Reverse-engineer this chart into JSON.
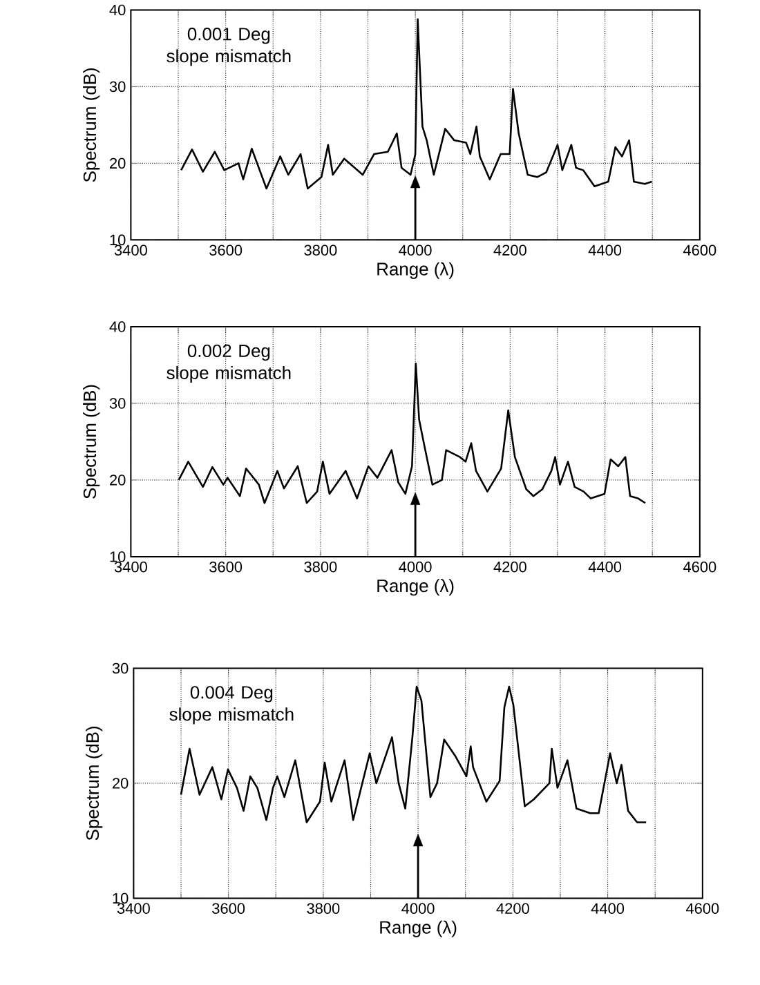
{
  "chart_data": [
    {
      "type": "line",
      "xlabel": "Range (λ)",
      "ylabel": "Spectrum (dB)",
      "annotations": [
        "0.001 Deg slope mismatch"
      ],
      "color": "#000000",
      "grid": true,
      "xlim": [
        3400,
        4600
      ],
      "ylim": [
        10,
        40
      ],
      "xticks": [
        3400,
        {
          "value": 3500,
          "label": null
        },
        3600,
        {
          "value": 3700,
          "label": null
        },
        3800,
        {
          "value": 3900,
          "label": null
        },
        4000,
        {
          "value": 4100,
          "label": null
        },
        4200,
        {
          "value": 4300,
          "label": null
        },
        4400,
        {
          "value": 4500,
          "label": null
        },
        4600
      ],
      "yticks": [
        10,
        20,
        30,
        40
      ],
      "ref_lines": [
        {
          "axis": "x",
          "value": 4000
        }
      ],
      "x": [
        3506,
        3529,
        3552,
        3577,
        3597,
        3627,
        3637,
        3655,
        3686,
        3715,
        3732,
        3758,
        3773,
        3802,
        3816,
        3826,
        3850,
        3889,
        3913,
        3942,
        3961,
        3971,
        3990,
        4000,
        4005,
        4015,
        4024,
        4039,
        4063,
        4082,
        4107,
        4116,
        4129,
        4136,
        4157,
        4180,
        4199,
        4206,
        4218,
        4237,
        4257,
        4276,
        4300,
        4310,
        4329,
        4339,
        4354,
        4378,
        4407,
        4422,
        4436,
        4451,
        4461,
        4484,
        4499
      ],
      "values": [
        19.1,
        21.8,
        18.9,
        21.5,
        19.1,
        20.0,
        17.9,
        21.9,
        16.7,
        20.9,
        18.5,
        21.2,
        16.7,
        18.2,
        22.4,
        18.5,
        20.6,
        18.5,
        21.2,
        21.5,
        23.9,
        19.4,
        18.5,
        21.2,
        38.8,
        24.8,
        23.0,
        18.5,
        24.5,
        23.0,
        22.7,
        21.2,
        24.8,
        20.9,
        17.9,
        21.2,
        21.2,
        29.7,
        23.9,
        18.5,
        18.2,
        18.8,
        22.4,
        19.1,
        22.4,
        19.4,
        19.1,
        17.0,
        17.6,
        22.1,
        20.9,
        23.0,
        17.6,
        17.3,
        17.6
      ]
    },
    {
      "type": "line",
      "xlabel": "Range (λ)",
      "ylabel": "Spectrum (dB)",
      "annotations": [
        "0.002 Deg slope mismatch"
      ],
      "color": "#000000",
      "grid": true,
      "xlim": [
        3400,
        4600
      ],
      "ylim": [
        10,
        40
      ],
      "xticks": [
        3400,
        {
          "value": 3500,
          "label": null
        },
        3600,
        {
          "value": 3700,
          "label": null
        },
        3800,
        {
          "value": 3900,
          "label": null
        },
        4000,
        {
          "value": 4100,
          "label": null
        },
        4200,
        {
          "value": 4300,
          "label": null
        },
        4400,
        {
          "value": 4500,
          "label": null
        },
        4600
      ],
      "yticks": [
        10,
        20,
        30,
        40
      ],
      "ref_lines": [
        {
          "axis": "x",
          "value": 4000
        }
      ],
      "x": [
        3501,
        3521,
        3552,
        3572,
        3595,
        3604,
        3630,
        3643,
        3670,
        3682,
        3709,
        3723,
        3752,
        3771,
        3793,
        3805,
        3819,
        3853,
        3877,
        3901,
        3920,
        3950,
        3964,
        3979,
        3993,
        4001,
        4008,
        4019,
        4036,
        4056,
        4065,
        4094,
        4106,
        4118,
        4128,
        4152,
        4181,
        4196,
        4210,
        4234,
        4249,
        4268,
        4287,
        4295,
        4305,
        4322,
        4336,
        4355,
        4370,
        4399,
        4412,
        4428,
        4443,
        4453,
        4470,
        4485
      ],
      "values": [
        20.0,
        22.4,
        19.1,
        21.7,
        19.4,
        20.3,
        17.9,
        21.5,
        19.4,
        17.0,
        21.2,
        18.9,
        21.8,
        17.0,
        18.5,
        22.4,
        18.2,
        21.2,
        17.6,
        21.8,
        20.3,
        23.9,
        19.7,
        18.2,
        21.8,
        35.2,
        27.9,
        24.5,
        19.4,
        20.0,
        23.9,
        23.0,
        22.4,
        24.8,
        21.2,
        18.5,
        21.5,
        29.1,
        23.0,
        18.8,
        17.9,
        18.8,
        21.2,
        23.0,
        19.4,
        22.4,
        19.1,
        18.5,
        17.6,
        18.2,
        22.7,
        21.8,
        23.0,
        17.9,
        17.6,
        17.0
      ]
    },
    {
      "type": "line",
      "xlabel": "Range (λ)",
      "ylabel": "Spectrum (dB)",
      "annotations": [
        "0.004 Deg slope mismatch"
      ],
      "color": "#000000",
      "grid": true,
      "xlim": [
        3400,
        4600
      ],
      "ylim": [
        10,
        30
      ],
      "xticks": [
        3400,
        {
          "value": 3500,
          "label": null
        },
        3600,
        {
          "value": 3700,
          "label": null
        },
        3800,
        {
          "value": 3900,
          "label": null
        },
        4000,
        {
          "value": 4100,
          "label": null
        },
        4200,
        {
          "value": 4300,
          "label": null
        },
        4400,
        {
          "value": 4500,
          "label": null
        },
        4600
      ],
      "yticks": [
        10,
        20,
        30
      ],
      "ref_lines": [
        {
          "axis": "x",
          "value": 4000
        }
      ],
      "x": [
        3500,
        3518,
        3539,
        3566,
        3585,
        3599,
        3618,
        3632,
        3646,
        3661,
        3680,
        3694,
        3703,
        3718,
        3741,
        3765,
        3793,
        3803,
        3817,
        3845,
        3863,
        3898,
        3912,
        3945,
        3959,
        3973,
        3988,
        3997,
        4007,
        4026,
        4040,
        4055,
        4078,
        4102,
        4111,
        4116,
        4144,
        4172,
        4182,
        4192,
        4201,
        4225,
        4244,
        4277,
        4282,
        4294,
        4315,
        4334,
        4363,
        4381,
        4405,
        4419,
        4429,
        4443,
        4462,
        4481
      ],
      "values": [
        19.0,
        23.0,
        19.0,
        21.4,
        18.6,
        21.2,
        19.6,
        17.6,
        20.6,
        19.6,
        16.8,
        19.6,
        20.6,
        18.8,
        22.0,
        16.6,
        18.4,
        21.8,
        18.4,
        22.0,
        16.8,
        22.6,
        20.0,
        24.0,
        20.0,
        17.8,
        24.0,
        28.4,
        27.2,
        18.8,
        20.0,
        23.8,
        22.4,
        20.6,
        23.2,
        21.4,
        18.4,
        20.2,
        26.6,
        28.4,
        26.8,
        18.0,
        18.6,
        20.0,
        23.0,
        19.6,
        22.0,
        17.8,
        17.4,
        17.4,
        22.6,
        20.0,
        21.6,
        17.6,
        16.6,
        16.6
      ]
    }
  ]
}
